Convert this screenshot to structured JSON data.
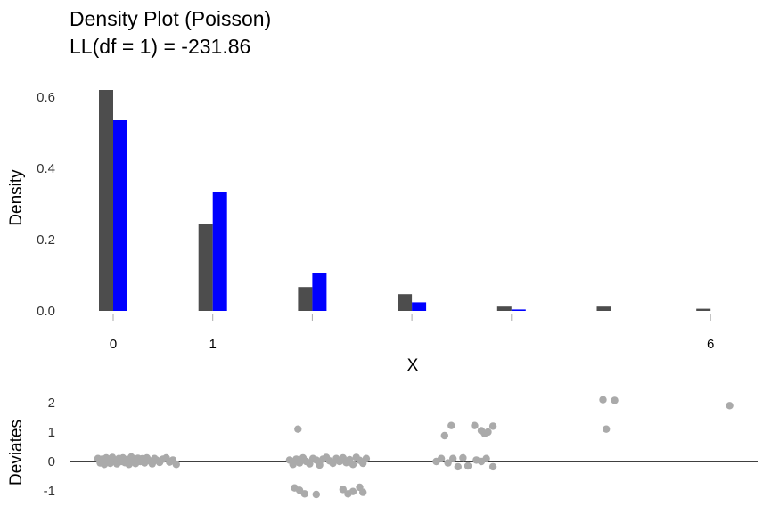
{
  "chart_data": [
    {
      "type": "bar",
      "title": "Density Plot (Poisson)",
      "subtitle": "LL(df = 1) = -231.86",
      "xlabel": "X",
      "ylabel": "Density",
      "x_tick_values": [
        0,
        1,
        2,
        3,
        4,
        5,
        6
      ],
      "x_tick_labels": [
        "0",
        "1",
        "",
        "",
        "",
        "",
        "6"
      ],
      "y_ticks": [
        0.0,
        0.2,
        0.4,
        0.6
      ],
      "y_tick_labels": [
        "0.0",
        "0.2",
        "0.4",
        "0.6"
      ],
      "ylim": [
        0,
        0.64
      ],
      "grid": false,
      "series": [
        {
          "values": [
            0.62,
            0.245,
            0.067,
            0.047,
            0.012,
            0.012,
            0.006
          ],
          "color": "#4d4d4d"
        },
        {
          "values": [
            0.535,
            0.335,
            0.106,
            0.024,
            0.004,
            0.0,
            0.0
          ],
          "color": "#0000ff"
        }
      ]
    },
    {
      "type": "scatter",
      "ylabel": "Deviates",
      "y_ticks": [
        2,
        1,
        0,
        -1
      ],
      "y_tick_labels": [
        "2",
        "1",
        "0",
        "-1"
      ],
      "ylim": [
        -1.3,
        2.3
      ],
      "reference_line_y": 0,
      "grid": false,
      "point_color": "#aaaaaa",
      "points": [
        {
          "x": 0.05,
          "y": 0.1
        },
        {
          "x": 0.12,
          "y": -0.05
        },
        {
          "x": 0.18,
          "y": 0.08
        },
        {
          "x": 0.24,
          "y": -0.1
        },
        {
          "x": 0.3,
          "y": 0.12
        },
        {
          "x": 0.36,
          "y": 0.02
        },
        {
          "x": 0.42,
          "y": -0.06
        },
        {
          "x": 0.48,
          "y": 0.14
        },
        {
          "x": 0.55,
          "y": 0.05
        },
        {
          "x": 0.62,
          "y": -0.08
        },
        {
          "x": 0.68,
          "y": 0.1
        },
        {
          "x": 0.74,
          "y": 0.0
        },
        {
          "x": 0.8,
          "y": 0.12
        },
        {
          "x": 0.86,
          "y": -0.04
        },
        {
          "x": 0.92,
          "y": 0.06
        },
        {
          "x": 0.98,
          "y": -0.1
        },
        {
          "x": 1.05,
          "y": 0.15
        },
        {
          "x": 1.12,
          "y": 0.03
        },
        {
          "x": 1.18,
          "y": -0.07
        },
        {
          "x": 1.25,
          "y": 0.11
        },
        {
          "x": 1.32,
          "y": 0.0
        },
        {
          "x": 1.38,
          "y": 0.09
        },
        {
          "x": 1.45,
          "y": -0.05
        },
        {
          "x": 1.52,
          "y": 0.12
        },
        {
          "x": 1.6,
          "y": 0.02
        },
        {
          "x": 1.68,
          "y": -0.08
        },
        {
          "x": 1.75,
          "y": 0.1
        },
        {
          "x": 1.82,
          "y": 0.04
        },
        {
          "x": 1.9,
          "y": -0.03
        },
        {
          "x": 2.0,
          "y": 0.08
        },
        {
          "x": 2.1,
          "y": 0.12
        },
        {
          "x": 2.2,
          "y": -0.02
        },
        {
          "x": 2.3,
          "y": 0.05
        },
        {
          "x": 2.4,
          "y": -0.1
        },
        {
          "x": 5.8,
          "y": 0.05
        },
        {
          "x": 5.9,
          "y": -0.1
        },
        {
          "x": 6.0,
          "y": 0.08
        },
        {
          "x": 6.05,
          "y": 1.1
        },
        {
          "x": 6.1,
          "y": -0.05
        },
        {
          "x": 6.2,
          "y": 0.12
        },
        {
          "x": 6.3,
          "y": 0.0
        },
        {
          "x": 6.4,
          "y": -0.08
        },
        {
          "x": 6.5,
          "y": 0.1
        },
        {
          "x": 6.6,
          "y": 0.05
        },
        {
          "x": 6.7,
          "y": -0.12
        },
        {
          "x": 6.8,
          "y": 0.08
        },
        {
          "x": 6.9,
          "y": 0.14
        },
        {
          "x": 7.0,
          "y": 0.02
        },
        {
          "x": 7.1,
          "y": -0.06
        },
        {
          "x": 7.2,
          "y": 0.1
        },
        {
          "x": 7.3,
          "y": 0.0
        },
        {
          "x": 7.4,
          "y": 0.12
        },
        {
          "x": 7.5,
          "y": -0.04
        },
        {
          "x": 7.6,
          "y": 0.06
        },
        {
          "x": 7.7,
          "y": -0.1
        },
        {
          "x": 7.8,
          "y": 0.14
        },
        {
          "x": 7.9,
          "y": 0.04
        },
        {
          "x": 8.0,
          "y": -0.06
        },
        {
          "x": 8.1,
          "y": 0.1
        },
        {
          "x": 5.95,
          "y": -0.9
        },
        {
          "x": 6.1,
          "y": -0.98
        },
        {
          "x": 6.25,
          "y": -1.1
        },
        {
          "x": 6.6,
          "y": -1.12
        },
        {
          "x": 7.4,
          "y": -0.95
        },
        {
          "x": 7.55,
          "y": -1.1
        },
        {
          "x": 7.7,
          "y": -1.02
        },
        {
          "x": 7.9,
          "y": -0.88
        },
        {
          "x": 8.0,
          "y": -1.05
        },
        {
          "x": 10.2,
          "y": 0.0
        },
        {
          "x": 10.35,
          "y": 0.1
        },
        {
          "x": 10.55,
          "y": -0.05
        },
        {
          "x": 10.7,
          "y": 0.1
        },
        {
          "x": 10.85,
          "y": -0.18
        },
        {
          "x": 11.0,
          "y": 0.12
        },
        {
          "x": 11.15,
          "y": -0.15
        },
        {
          "x": 11.4,
          "y": 0.05
        },
        {
          "x": 11.55,
          "y": 0.0
        },
        {
          "x": 11.7,
          "y": 0.1
        },
        {
          "x": 11.9,
          "y": -0.18
        },
        {
          "x": 10.45,
          "y": 0.88
        },
        {
          "x": 10.65,
          "y": 1.22
        },
        {
          "x": 11.35,
          "y": 1.22
        },
        {
          "x": 11.55,
          "y": 1.05
        },
        {
          "x": 11.65,
          "y": 0.95
        },
        {
          "x": 11.75,
          "y": 1.0
        },
        {
          "x": 11.9,
          "y": 1.2
        },
        {
          "x": 15.2,
          "y": 2.1
        },
        {
          "x": 15.55,
          "y": 2.08
        },
        {
          "x": 15.3,
          "y": 1.1
        },
        {
          "x": 19.0,
          "y": 1.9
        }
      ]
    }
  ]
}
